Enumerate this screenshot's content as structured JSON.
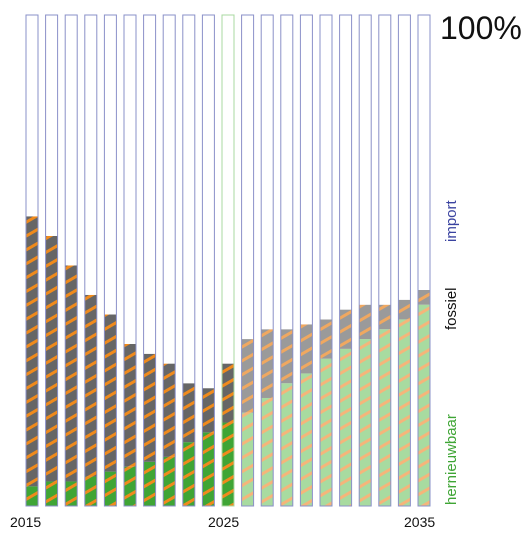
{
  "chart_data": {
    "type": "bar",
    "stacked": true,
    "percent_label": "100%",
    "x": [
      2015,
      2016,
      2017,
      2018,
      2019,
      2020,
      2021,
      2022,
      2023,
      2024,
      2025,
      2026,
      2027,
      2028,
      2029,
      2030,
      2031,
      2032,
      2033,
      2034,
      2035
    ],
    "x_tick_labels": [
      "2015",
      "2025",
      "2035"
    ],
    "ylim": [
      0,
      100
    ],
    "series": [
      {
        "name": "hernieuwbaar",
        "color_before_2026": "#3fa535",
        "color_from_2026": "#a8dba0",
        "values": [
          4,
          5,
          5,
          6,
          7,
          8,
          9,
          10,
          13,
          15,
          17,
          19,
          22,
          25,
          27,
          30,
          32,
          34,
          36,
          38,
          41
        ]
      },
      {
        "name": "fossiel",
        "color_before_2026": "#666666",
        "color_from_2026": "#9a9a9a",
        "values": [
          55,
          50,
          44,
          37,
          32,
          25,
          22,
          19,
          12,
          9,
          12,
          15,
          14,
          11,
          10,
          8,
          8,
          7,
          5,
          4,
          3
        ]
      },
      {
        "name": "import",
        "color_before_2026": "#ffffff",
        "color_from_2026": "#ffffff",
        "values": [
          41,
          45,
          51,
          57,
          61,
          67,
          69,
          71,
          75,
          76,
          71,
          66,
          64,
          64,
          63,
          62,
          60,
          59,
          59,
          58,
          56
        ]
      }
    ],
    "stripe_color": "#f08a1c",
    "bar_outline_color": "#8a90c8",
    "highlight_outline_color": "#a8d8a0",
    "highlight_year": 2025,
    "legend_position": "right, vertical",
    "legend_colors": {
      "import": "#3a43a0",
      "fossiel": "#111111",
      "hernieuwbaar": "#3fa535"
    }
  }
}
